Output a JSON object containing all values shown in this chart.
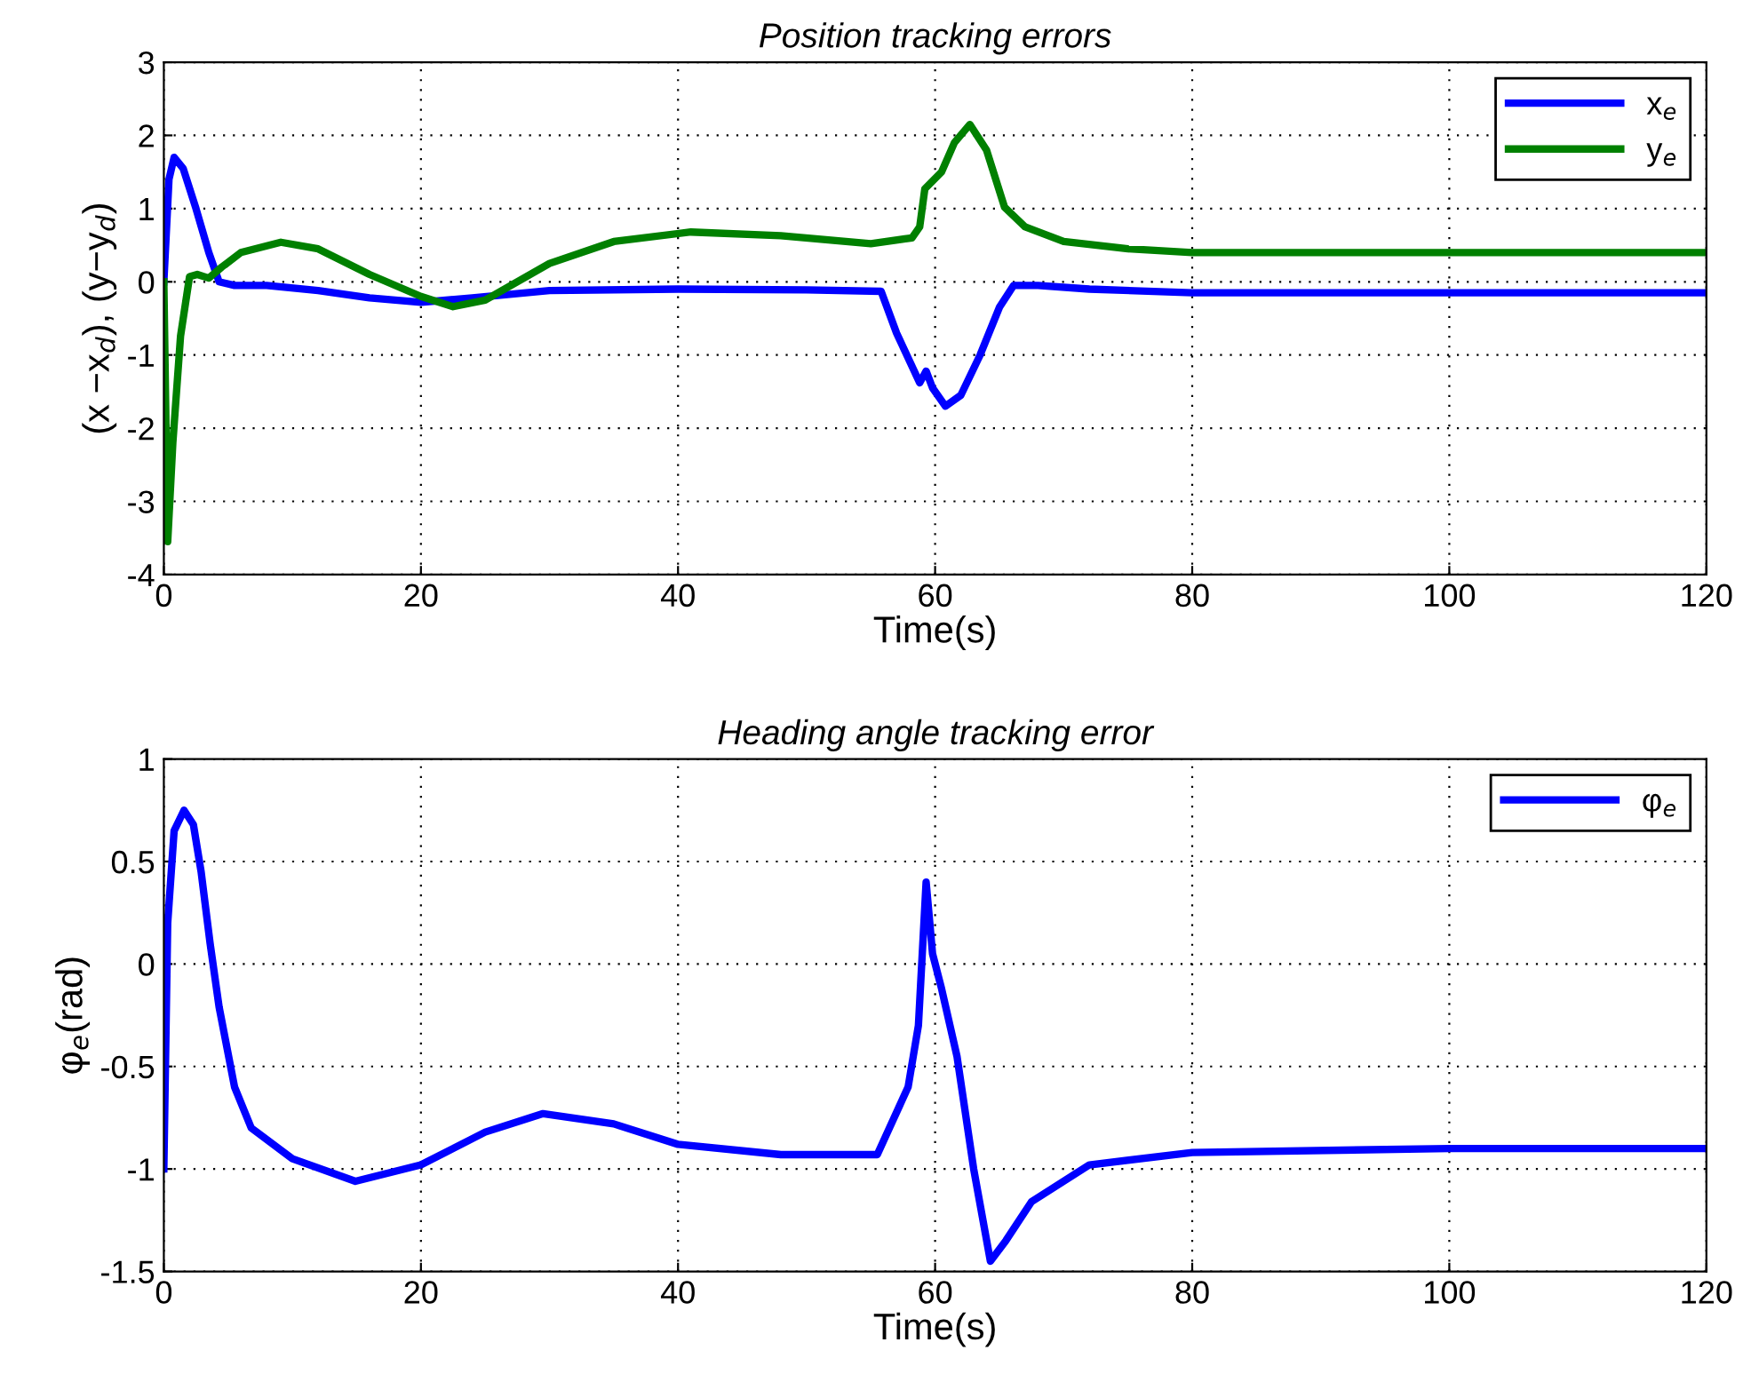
{
  "chart_data": [
    {
      "type": "line",
      "title": "Position tracking errors",
      "xlabel": "Time(s)",
      "ylabel": "(x −x$_{d}$), (y−y$_{d}$)",
      "xlim": [
        0,
        120
      ],
      "xticks": [
        0,
        20,
        40,
        60,
        80,
        100,
        120
      ],
      "ylim": [
        -4,
        3
      ],
      "yticks": [
        -4,
        -3,
        -2,
        -1,
        0,
        1,
        2,
        3
      ],
      "grid": true,
      "legend": "top right",
      "line_style": "solid",
      "series": [
        {
          "name": "x$_{e}$",
          "color": "#0000ff",
          "x": [
            0,
            0.4,
            0.8,
            1.5,
            2.5,
            3.5,
            4.3,
            5.5,
            8,
            12,
            16,
            20,
            24,
            30,
            40,
            50,
            55.8,
            57,
            58.8,
            59.3,
            59.8,
            60.8,
            62,
            63.5,
            65,
            66.1,
            68,
            72,
            80,
            100,
            120
          ],
          "values": [
            0,
            1.4,
            1.7,
            1.55,
            1.0,
            0.4,
            0.0,
            -0.05,
            -0.05,
            -0.12,
            -0.22,
            -0.28,
            -0.22,
            -0.12,
            -0.1,
            -0.11,
            -0.13,
            -0.7,
            -1.38,
            -1.22,
            -1.45,
            -1.7,
            -1.55,
            -1.0,
            -0.35,
            -0.05,
            -0.05,
            -0.1,
            -0.15,
            -0.15,
            -0.15
          ]
        },
        {
          "name": "y$_{e}$",
          "color": "#008000",
          "x": [
            0,
            0.3,
            0.7,
            1.3,
            2,
            2.6,
            3.5,
            4.5,
            6,
            9.1,
            12,
            16,
            20,
            22.5,
            25,
            30,
            35,
            41,
            48,
            55,
            58.2,
            58.8,
            59.2,
            60.5,
            61.5,
            62.7,
            64,
            65.4,
            67,
            70,
            75,
            80,
            100,
            120
          ],
          "values": [
            0,
            -3.55,
            -2.2,
            -0.74,
            0.07,
            0.1,
            0.05,
            0.2,
            0.4,
            0.54,
            0.45,
            0.1,
            -0.2,
            -0.34,
            -0.25,
            0.25,
            0.55,
            0.68,
            0.63,
            0.52,
            0.6,
            0.75,
            1.27,
            1.5,
            1.9,
            2.15,
            1.8,
            1.02,
            0.75,
            0.55,
            0.45,
            0.4,
            0.4,
            0.4
          ]
        }
      ]
    },
    {
      "type": "line",
      "title": "Heading angle tracking error",
      "xlabel": "Time(s)",
      "ylabel": "φ$_{e}$(rad)",
      "xlim": [
        0,
        120
      ],
      "xticks": [
        0,
        20,
        40,
        60,
        80,
        100,
        120
      ],
      "ylim": [
        -1.5,
        1
      ],
      "yticks": [
        -1.5,
        -1,
        -0.5,
        0,
        0.5,
        1
      ],
      "grid": true,
      "legend": "top right",
      "line_style": "solid",
      "series": [
        {
          "name": "φ$_{e}$",
          "color": "#0000ff",
          "x": [
            0,
            0.3,
            0.8,
            1.57,
            2.3,
            2.9,
            3.6,
            4.3,
            5.5,
            6.8,
            10,
            14.9,
            20,
            25,
            29.5,
            35,
            40,
            48,
            55.5,
            57.9,
            58.7,
            59.3,
            59.8,
            60.5,
            61.7,
            63,
            64.3,
            65.5,
            67.5,
            72,
            80,
            100,
            120
          ],
          "values": [
            -1.0,
            0.2,
            0.65,
            0.75,
            0.68,
            0.45,
            0.1,
            -0.21,
            -0.6,
            -0.8,
            -0.95,
            -1.06,
            -0.98,
            -0.82,
            -0.73,
            -0.78,
            -0.88,
            -0.93,
            -0.93,
            -0.6,
            -0.3,
            0.4,
            0.05,
            -0.12,
            -0.45,
            -1.0,
            -1.45,
            -1.35,
            -1.16,
            -0.98,
            -0.92,
            -0.9,
            -0.9
          ]
        }
      ]
    }
  ]
}
